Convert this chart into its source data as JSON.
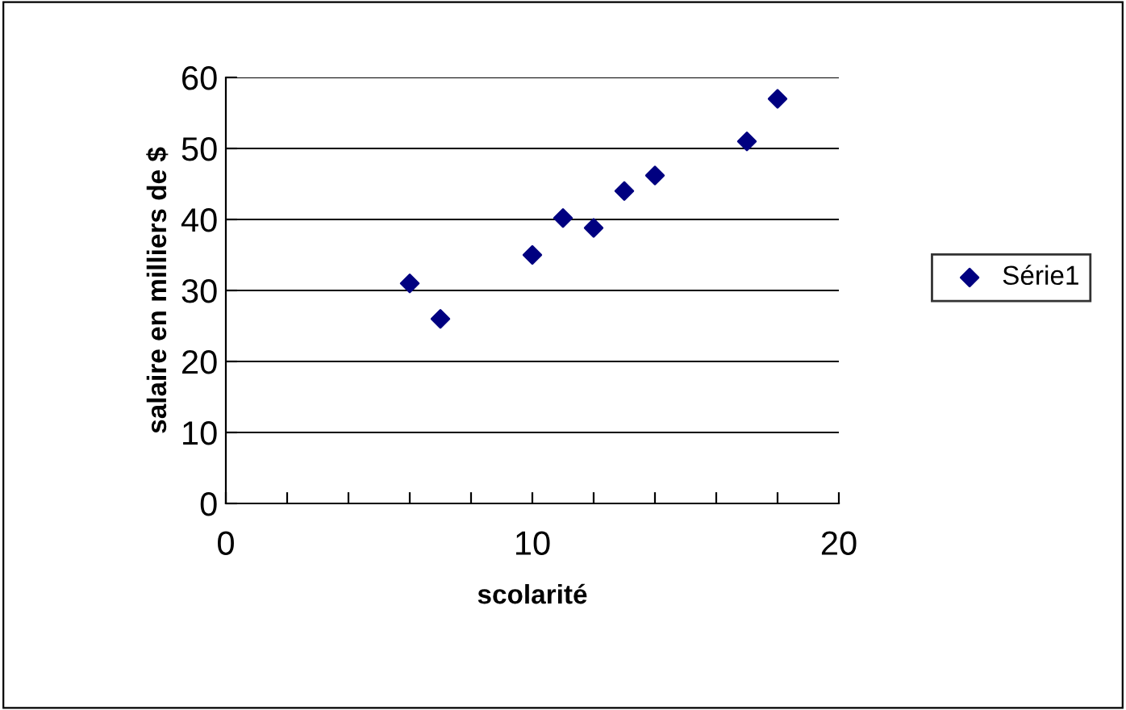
{
  "chart_data": {
    "type": "scatter",
    "xlabel": "scolarité",
    "ylabel": "salaire en milliers de $",
    "series": [
      {
        "name": "Série1",
        "color": "#000080",
        "x": [
          6,
          7,
          10,
          11,
          12,
          13,
          14,
          17,
          18
        ],
        "values": [
          31,
          26,
          35,
          40.2,
          38.8,
          44,
          46.2,
          51,
          57
        ]
      }
    ],
    "xlim": [
      0,
      20
    ],
    "ylim": [
      0,
      60
    ],
    "xticks": [
      0,
      {
        "value": 2,
        "label": null
      },
      {
        "value": 4,
        "label": null
      },
      {
        "value": 6,
        "label": null
      },
      {
        "value": 8,
        "label": null
      },
      10,
      {
        "value": 12,
        "label": null
      },
      {
        "value": 14,
        "label": null
      },
      {
        "value": 16,
        "label": null
      },
      {
        "value": 18,
        "label": null
      },
      20
    ],
    "yticks": [
      0,
      10,
      20,
      30,
      40,
      50,
      60
    ],
    "grid": "y",
    "legend": "right",
    "marker": "diamond"
  }
}
